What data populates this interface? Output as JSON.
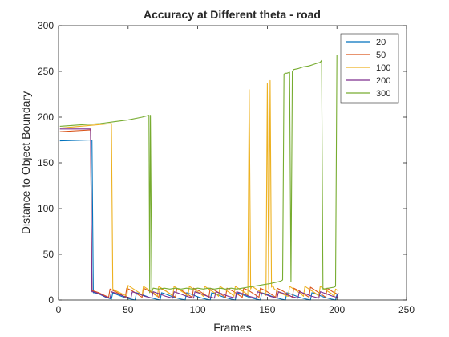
{
  "chart_data": {
    "type": "line",
    "title": "Accuracy at Different theta - road",
    "xlabel": "Frames",
    "ylabel": "Distance to Object Boundary",
    "xlim": [
      0,
      250
    ],
    "ylim": [
      0,
      300
    ],
    "xticks": [
      0,
      50,
      100,
      150,
      200,
      250
    ],
    "yticks": [
      0,
      50,
      100,
      150,
      200,
      250,
      300
    ],
    "grid": false,
    "legend_position": "top-right",
    "series": [
      {
        "name": "20",
        "color": "#0072BD",
        "x": [
          1,
          24,
          25,
          26,
          30,
          34,
          38,
          39,
          42,
          47,
          52,
          55,
          56,
          60,
          65,
          70,
          73,
          74,
          78,
          83,
          88,
          91,
          92,
          96,
          101,
          106,
          109,
          110,
          114,
          119,
          124,
          127,
          128,
          132,
          137,
          142,
          145,
          146,
          150,
          155,
          160,
          163,
          164,
          168,
          173,
          178,
          181,
          182,
          186,
          191,
          196,
          199,
          200,
          201
        ],
        "y": [
          174,
          175,
          8,
          8,
          6,
          3,
          1,
          8,
          6,
          3,
          1,
          0,
          8,
          6,
          3,
          1,
          0,
          8,
          6,
          3,
          1,
          0,
          8,
          6,
          3,
          1,
          0,
          8,
          6,
          3,
          1,
          0,
          8,
          6,
          3,
          1,
          0,
          8,
          6,
          3,
          1,
          0,
          8,
          6,
          3,
          1,
          0,
          8,
          6,
          3,
          1,
          0,
          6,
          2
        ]
      },
      {
        "name": "50",
        "color": "#D95319",
        "x": [
          1,
          23,
          24,
          25,
          29,
          33,
          36,
          37,
          41,
          45,
          48,
          49,
          53,
          57,
          60,
          61,
          65,
          69,
          72,
          73,
          77,
          81,
          84,
          85,
          89,
          93,
          96,
          97,
          101,
          105,
          108,
          109,
          113,
          117,
          120,
          121,
          125,
          129,
          132,
          133,
          137,
          141,
          144,
          145,
          149,
          153,
          156,
          157,
          161,
          165,
          168,
          169,
          173,
          177,
          180,
          181,
          185,
          189,
          192,
          193,
          197,
          201
        ],
        "y": [
          184,
          186,
          10,
          10,
          8,
          5,
          3,
          12,
          9,
          6,
          3,
          13,
          10,
          6,
          3,
          13,
          10,
          6,
          3,
          13,
          10,
          6,
          3,
          13,
          10,
          6,
          3,
          13,
          10,
          6,
          3,
          13,
          10,
          6,
          3,
          13,
          10,
          6,
          3,
          13,
          10,
          6,
          3,
          13,
          10,
          6,
          3,
          13,
          10,
          6,
          3,
          13,
          10,
          6,
          3,
          14,
          10,
          6,
          3,
          13,
          9,
          6
        ]
      },
      {
        "name": "100",
        "color": "#EDB120",
        "x": [
          1,
          38,
          39,
          40,
          44,
          48,
          49,
          50,
          54,
          58,
          60,
          61,
          65,
          69,
          71,
          72,
          76,
          80,
          82,
          83,
          87,
          91,
          93,
          94,
          98,
          102,
          104,
          105,
          109,
          113,
          115,
          116,
          120,
          124,
          126,
          127,
          131,
          135,
          136,
          137,
          138,
          139,
          143,
          147,
          149,
          150,
          151,
          152,
          153,
          154,
          155,
          159,
          163,
          165,
          166,
          170,
          174,
          176,
          177,
          181,
          185,
          187,
          188,
          192,
          196,
          198,
          199,
          201
        ],
        "y": [
          188,
          193,
          12,
          11,
          8,
          5,
          4,
          16,
          12,
          8,
          5,
          15,
          11,
          7,
          4,
          15,
          11,
          7,
          4,
          15,
          11,
          7,
          4,
          15,
          11,
          7,
          4,
          15,
          11,
          7,
          4,
          15,
          11,
          7,
          4,
          15,
          11,
          7,
          5,
          230,
          12,
          15,
          11,
          7,
          5,
          237,
          12,
          240,
          14,
          16,
          12,
          8,
          5,
          4,
          15,
          11,
          7,
          4,
          15,
          11,
          7,
          4,
          15,
          11,
          7,
          4,
          12,
          10
        ]
      },
      {
        "name": "200",
        "color": "#7E2F8E",
        "x": [
          1,
          23,
          24,
          25,
          29,
          33,
          37,
          38,
          42,
          47,
          52,
          53,
          57,
          62,
          67,
          68,
          72,
          77,
          82,
          83,
          87,
          92,
          97,
          98,
          102,
          107,
          112,
          113,
          117,
          122,
          127,
          128,
          132,
          137,
          142,
          143,
          147,
          152,
          157,
          158,
          162,
          167,
          172,
          173,
          177,
          182,
          187,
          188,
          192,
          197,
          200,
          201
        ],
        "y": [
          187,
          187,
          9,
          9,
          7,
          4,
          2,
          9,
          7,
          4,
          2,
          9,
          7,
          4,
          2,
          9,
          7,
          4,
          2,
          9,
          7,
          4,
          2,
          9,
          7,
          4,
          2,
          9,
          7,
          4,
          2,
          9,
          7,
          4,
          2,
          9,
          7,
          4,
          2,
          9,
          7,
          4,
          2,
          9,
          7,
          4,
          2,
          9,
          7,
          4,
          3,
          8
        ]
      },
      {
        "name": "300",
        "color": "#77AC30",
        "x": [
          1,
          10,
          20,
          30,
          40,
          50,
          60,
          65,
          65.5,
          66,
          67,
          68,
          72,
          76,
          80,
          84,
          88,
          92,
          96,
          100,
          104,
          108,
          112,
          116,
          120,
          124,
          128,
          132,
          136,
          140,
          144,
          148,
          152,
          155,
          158,
          160,
          161,
          162,
          163,
          164,
          166,
          167,
          168,
          169,
          172,
          176,
          180,
          184,
          188,
          189,
          190,
          194,
          198,
          199,
          200
        ],
        "y": [
          190,
          191,
          192,
          193,
          195,
          197,
          200,
          202,
          8,
          202,
          8,
          13,
          12,
          13,
          12,
          13,
          12,
          13,
          12,
          13,
          12,
          13,
          12,
          13,
          12,
          13,
          12,
          13,
          14,
          15,
          16,
          17,
          18,
          19,
          20,
          21,
          22,
          247,
          248,
          248,
          249,
          20,
          250,
          252,
          253,
          255,
          256,
          258,
          260,
          262,
          12,
          13,
          14,
          15,
          268
        ]
      }
    ]
  }
}
